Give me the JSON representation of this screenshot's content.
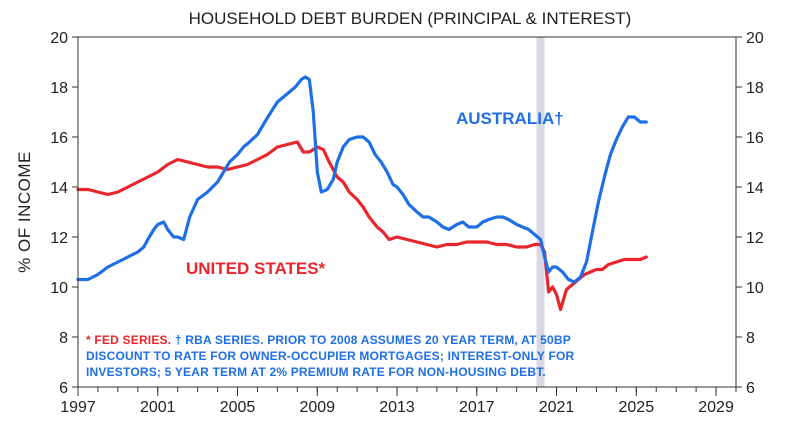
{
  "chart_data": {
    "type": "line",
    "title": "HOUSEHOLD DEBT BURDEN (PRINCIPAL & INTEREST)",
    "ylabel": "% OF INCOME",
    "xlabel": "",
    "xlim": [
      1997,
      2030
    ],
    "ylim": [
      6,
      20
    ],
    "x_ticks": [
      "1997",
      "2001",
      "2005",
      "2009",
      "2013",
      "2017",
      "2021",
      "2025",
      "2029"
    ],
    "y_ticks": [
      "6",
      "8",
      "10",
      "12",
      "14",
      "16",
      "18",
      "20"
    ],
    "grid": false,
    "recession_band": [
      2020.0,
      2020.4
    ],
    "series": [
      {
        "name": "AUSTRALIA†",
        "color": "#1f6fe6",
        "x": [
          1997.0,
          1997.5,
          1998.0,
          1998.5,
          1999.0,
          1999.5,
          2000.0,
          2000.3,
          2000.5,
          2000.8,
          2001.0,
          2001.3,
          2001.5,
          2001.8,
          2002.0,
          2002.3,
          2002.6,
          2003.0,
          2003.5,
          2004.0,
          2004.3,
          2004.6,
          2005.0,
          2005.3,
          2005.6,
          2006.0,
          2006.3,
          2006.6,
          2007.0,
          2007.3,
          2007.6,
          2007.9,
          2008.2,
          2008.4,
          2008.6,
          2008.8,
          2009.0,
          2009.2,
          2009.5,
          2009.8,
          2010.0,
          2010.3,
          2010.6,
          2011.0,
          2011.3,
          2011.6,
          2011.9,
          2012.2,
          2012.5,
          2012.8,
          2013.0,
          2013.3,
          2013.6,
          2014.0,
          2014.3,
          2014.6,
          2015.0,
          2015.3,
          2015.6,
          2016.0,
          2016.3,
          2016.6,
          2017.0,
          2017.3,
          2017.6,
          2018.0,
          2018.3,
          2018.6,
          2019.0,
          2019.3,
          2019.6,
          2019.9,
          2020.2,
          2020.4,
          2020.6,
          2020.8,
          2021.0,
          2021.3,
          2021.6,
          2021.9,
          2022.2,
          2022.5,
          2022.8,
          2023.1,
          2023.4,
          2023.7,
          2024.0,
          2024.3,
          2024.6,
          2024.9,
          2025.2,
          2025.5
        ],
        "values": [
          10.3,
          10.3,
          10.5,
          10.8,
          11.0,
          11.2,
          11.4,
          11.6,
          11.9,
          12.3,
          12.5,
          12.6,
          12.3,
          12.0,
          12.0,
          11.9,
          12.8,
          13.5,
          13.8,
          14.2,
          14.6,
          15.0,
          15.3,
          15.6,
          15.8,
          16.1,
          16.5,
          16.9,
          17.4,
          17.6,
          17.8,
          18.0,
          18.3,
          18.4,
          18.3,
          17.0,
          14.6,
          13.8,
          13.9,
          14.3,
          15.0,
          15.6,
          15.9,
          16.0,
          16.0,
          15.8,
          15.3,
          15.0,
          14.6,
          14.1,
          14.0,
          13.7,
          13.3,
          13.0,
          12.8,
          12.8,
          12.6,
          12.4,
          12.3,
          12.5,
          12.6,
          12.4,
          12.4,
          12.6,
          12.7,
          12.8,
          12.8,
          12.7,
          12.5,
          12.4,
          12.3,
          12.1,
          11.9,
          11.2,
          10.6,
          10.8,
          10.8,
          10.6,
          10.3,
          10.2,
          10.4,
          11.0,
          12.2,
          13.4,
          14.4,
          15.3,
          15.9,
          16.4,
          16.8,
          16.8,
          16.6,
          16.6
        ]
      },
      {
        "name": "UNITED STATES*",
        "color": "#e8262c",
        "x": [
          1997.0,
          1997.5,
          1998.0,
          1998.5,
          1999.0,
          1999.5,
          2000.0,
          2000.5,
          2001.0,
          2001.5,
          2002.0,
          2002.5,
          2003.0,
          2003.5,
          2004.0,
          2004.5,
          2005.0,
          2005.5,
          2006.0,
          2006.5,
          2007.0,
          2007.5,
          2008.0,
          2008.3,
          2008.6,
          2009.0,
          2009.3,
          2009.6,
          2010.0,
          2010.3,
          2010.6,
          2011.0,
          2011.3,
          2011.6,
          2012.0,
          2012.3,
          2012.6,
          2013.0,
          2013.5,
          2014.0,
          2014.5,
          2015.0,
          2015.5,
          2016.0,
          2016.5,
          2017.0,
          2017.5,
          2018.0,
          2018.5,
          2019.0,
          2019.5,
          2019.9,
          2020.2,
          2020.4,
          2020.6,
          2020.8,
          2021.0,
          2021.2,
          2021.5,
          2021.8,
          2022.1,
          2022.4,
          2022.7,
          2023.0,
          2023.3,
          2023.6,
          2024.0,
          2024.4,
          2024.8,
          2025.2,
          2025.5
        ],
        "values": [
          13.9,
          13.9,
          13.8,
          13.7,
          13.8,
          14.0,
          14.2,
          14.4,
          14.6,
          14.9,
          15.1,
          15.0,
          14.9,
          14.8,
          14.8,
          14.7,
          14.8,
          14.9,
          15.1,
          15.3,
          15.6,
          15.7,
          15.8,
          15.4,
          15.4,
          15.6,
          15.5,
          15.0,
          14.4,
          14.2,
          13.8,
          13.5,
          13.2,
          12.8,
          12.4,
          12.2,
          11.9,
          12.0,
          11.9,
          11.8,
          11.7,
          11.6,
          11.7,
          11.7,
          11.8,
          11.8,
          11.8,
          11.7,
          11.7,
          11.6,
          11.6,
          11.7,
          11.7,
          11.4,
          9.8,
          10.0,
          9.7,
          9.1,
          9.9,
          10.1,
          10.3,
          10.5,
          10.6,
          10.7,
          10.7,
          10.9,
          11.0,
          11.1,
          11.1,
          11.1,
          11.2
        ]
      }
    ],
    "annotations": {
      "australia_label": "AUSTRALIA†",
      "us_label": "UNITED STATES*",
      "footnote_line1": "* FED SERIES.    † RBA SERIES.   PRIOR TO 2008 ASSUMES 20 YEAR TERM, AT 50BP",
      "footnote_line2": "DISCOUNT TO RATE FOR OWNER-OCCUPIER MORTGAGES;  INTEREST-ONLY FOR",
      "footnote_line3": "INVESTORS; 5 YEAR TERM AT 2% PREMIUM RATE FOR NON-HOUSING DEBT."
    }
  }
}
